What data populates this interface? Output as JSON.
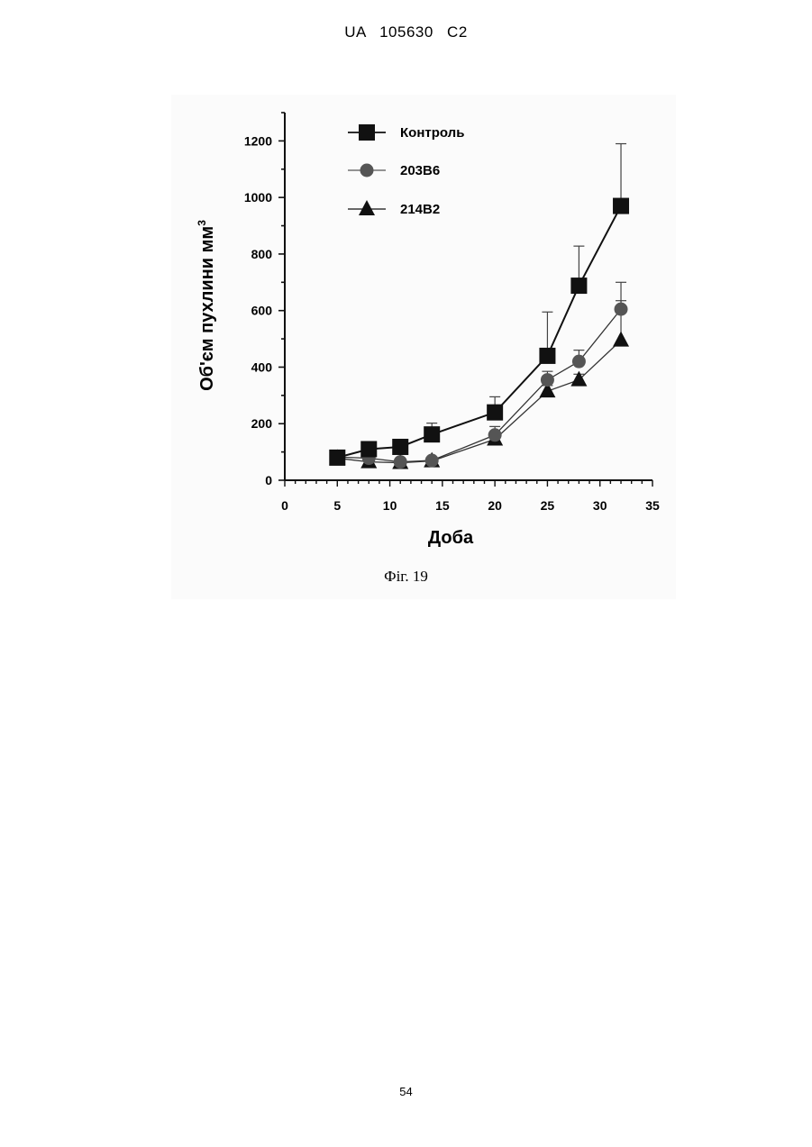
{
  "header": {
    "text": "UA   105630   C2"
  },
  "caption": "Фіг. 19",
  "page_number": "54",
  "chart_data": {
    "type": "line",
    "title": "",
    "xlabel": "Доба",
    "ylabel": "Об'єм пухлини мм",
    "ylabel_sup": "3",
    "xlim": [
      0,
      35
    ],
    "ylim": [
      0,
      1300
    ],
    "x_ticks": [
      0,
      5,
      10,
      15,
      20,
      25,
      30,
      35
    ],
    "y_ticks": [
      0,
      200,
      400,
      600,
      800,
      1000,
      1200
    ],
    "grid": false,
    "legend_position": "top-left",
    "x": [
      5,
      8,
      11,
      14,
      20,
      25,
      28,
      32
    ],
    "series": [
      {
        "name": "Контроль",
        "marker": "square",
        "color": "#111111",
        "values": [
          80,
          110,
          118,
          162,
          240,
          440,
          688,
          970
        ],
        "errors": [
          10,
          12,
          15,
          40,
          55,
          155,
          140,
          220
        ]
      },
      {
        "name": "203B6",
        "marker": "circle",
        "color": "#555555",
        "values": [
          82,
          78,
          65,
          70,
          160,
          355,
          420,
          605
        ],
        "errors": [
          8,
          8,
          8,
          10,
          30,
          30,
          40,
          95
        ]
      },
      {
        "name": "214B2",
        "marker": "triangle",
        "color": "#111111",
        "values": [
          78,
          65,
          62,
          68,
          145,
          315,
          355,
          495
        ],
        "errors": [
          5,
          5,
          5,
          5,
          10,
          20,
          20,
          140
        ]
      }
    ]
  }
}
